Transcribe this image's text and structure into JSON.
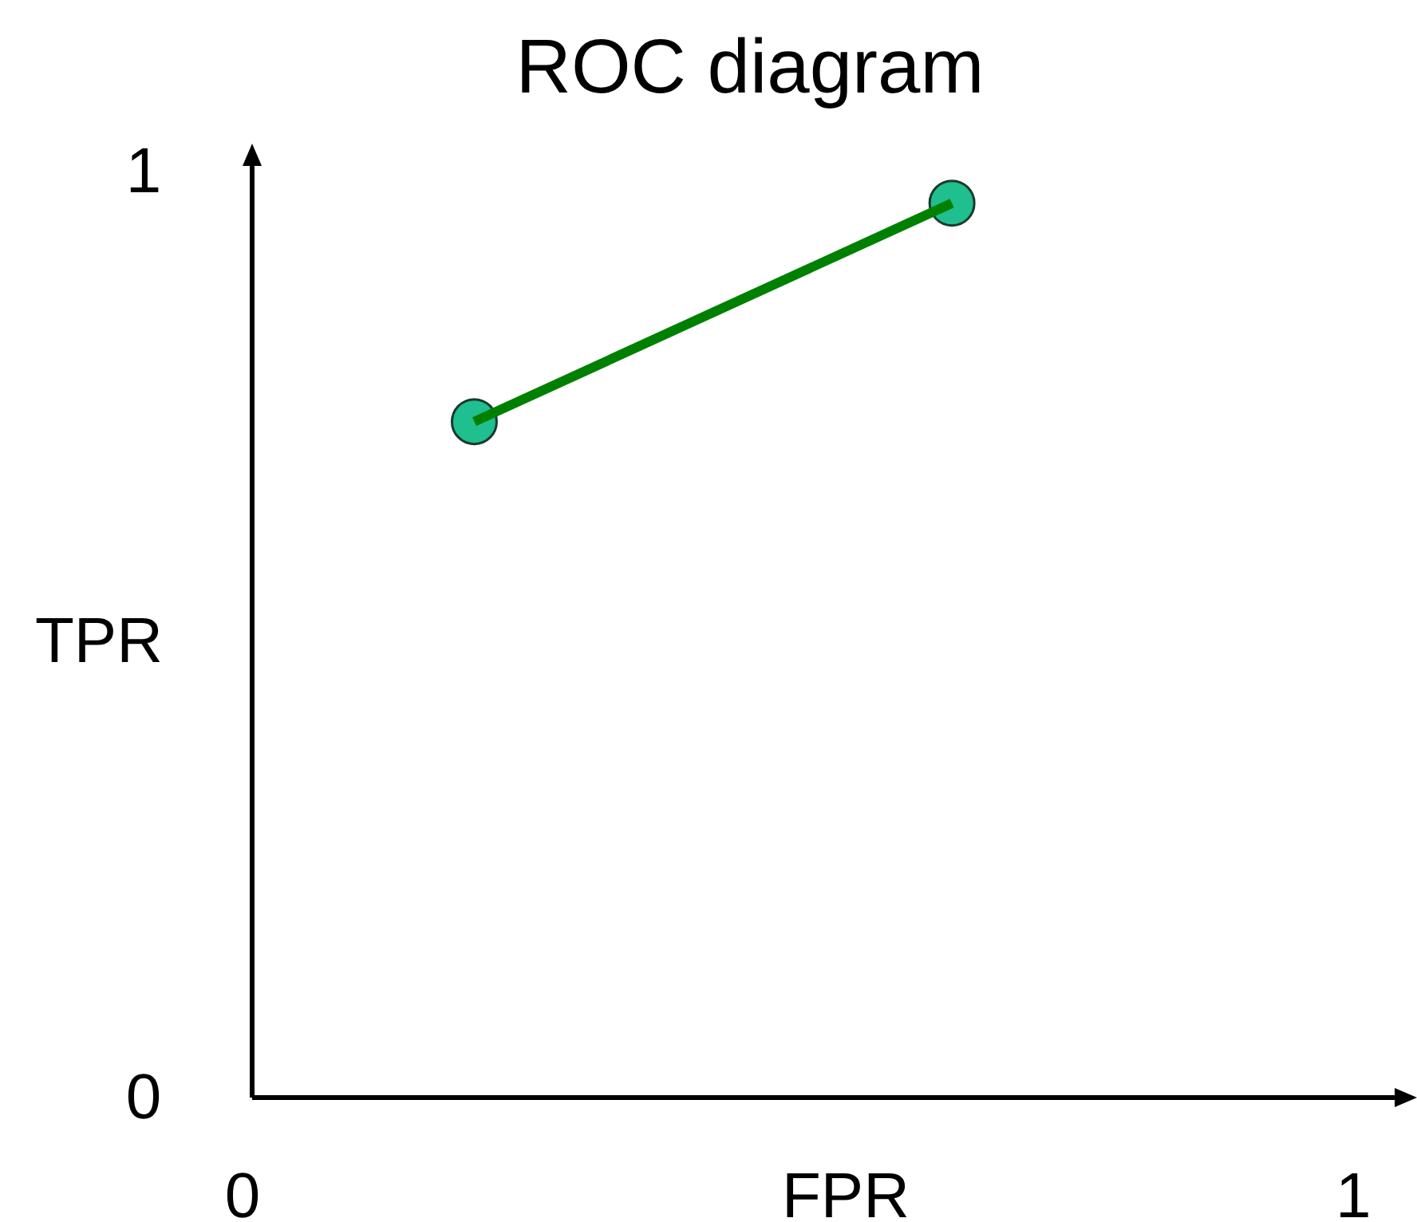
{
  "chart_data": {
    "type": "line",
    "title": "ROC diagram",
    "xlabel": "FPR",
    "ylabel": "TPR",
    "xlim": [
      0,
      1.04
    ],
    "ylim": [
      0,
      1.02
    ],
    "xticks": [
      0,
      1
    ],
    "yticks": [
      0,
      1
    ],
    "grid": false,
    "line_style": "solid",
    "x": [
      0.2,
      0.63
    ],
    "series": [
      {
        "type": "scatter",
        "values": [
          0.73,
          0.966
        ],
        "color": "#1fbf8f",
        "marker": "circle"
      },
      {
        "values": [
          0.73,
          0.966
        ],
        "color": "#008000",
        "marker": "none"
      }
    ]
  }
}
